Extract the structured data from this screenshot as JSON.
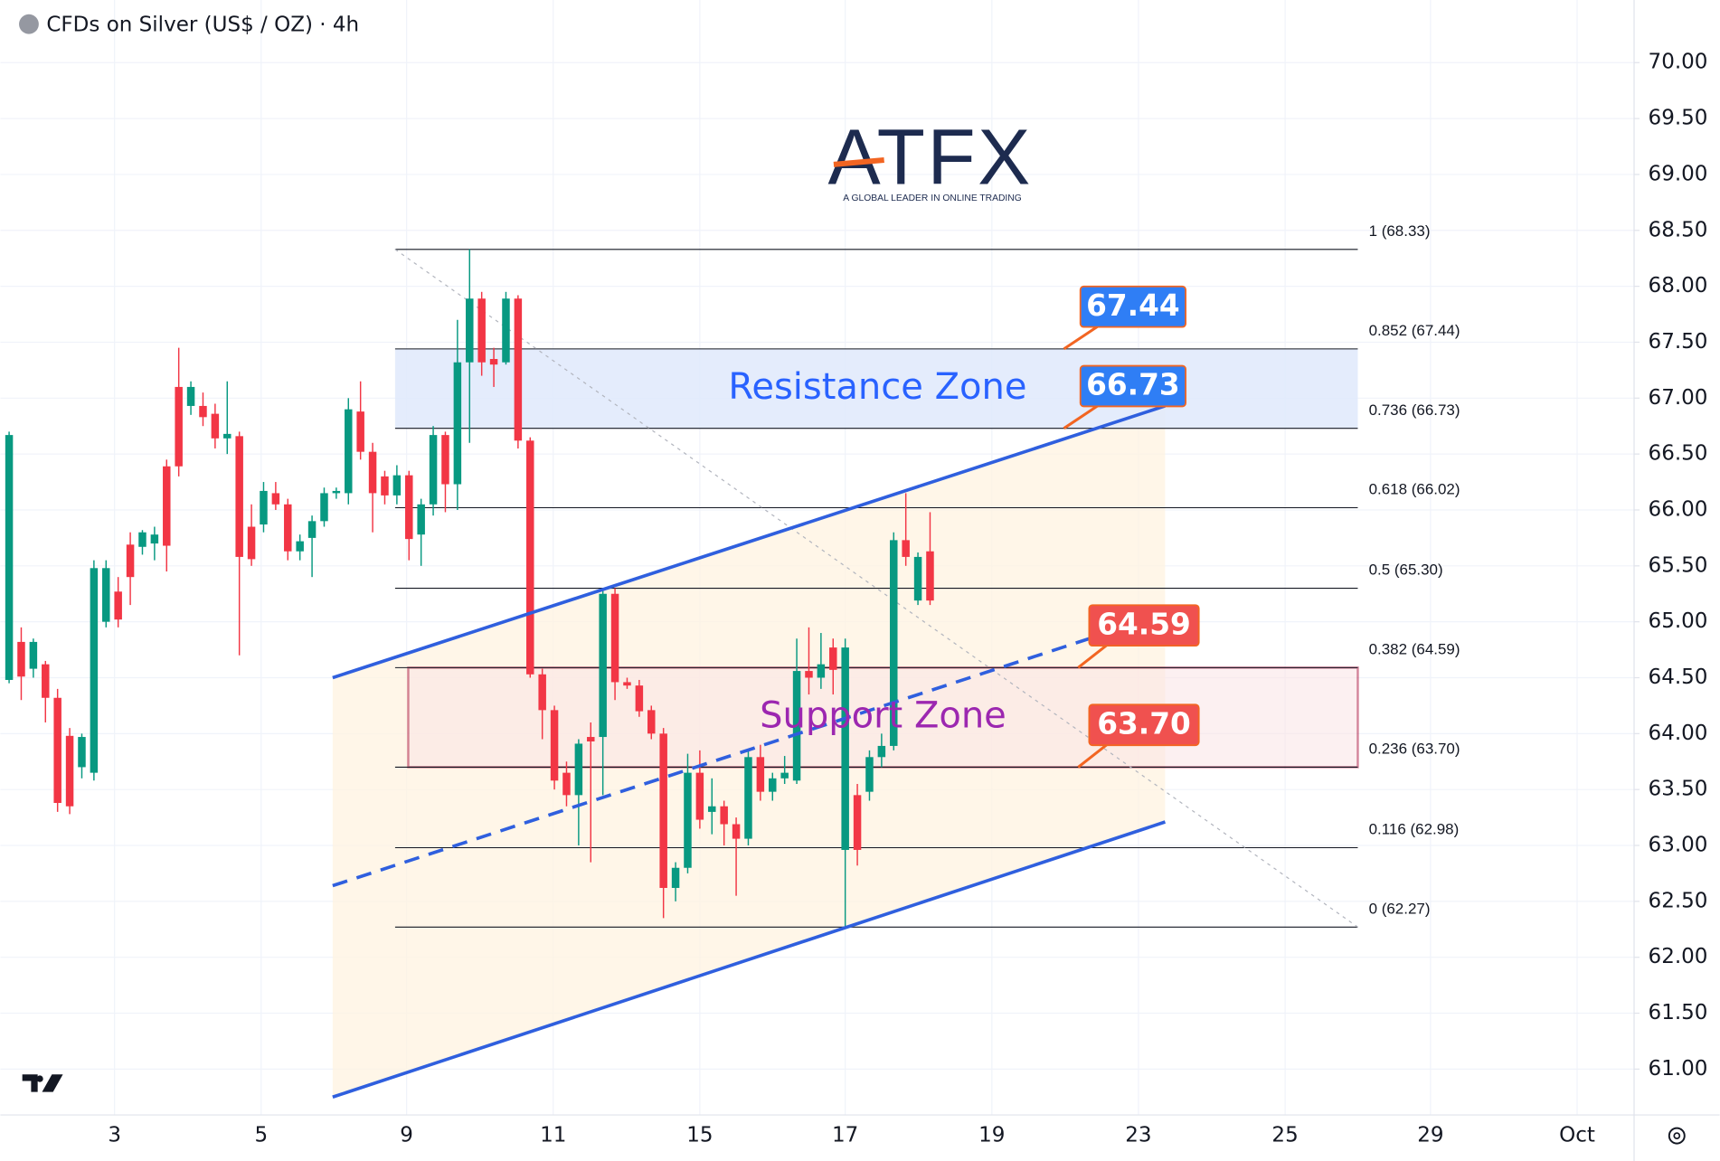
{
  "header": {
    "title": "CFDs on Silver (US$ / OZ) · 4h"
  },
  "logo": {
    "name": "ATFX",
    "tagline": "A GLOBAL LEADER IN ONLINE TRADING"
  },
  "chart_data": {
    "type": "candlestick",
    "x": [
      0,
      1,
      2,
      3,
      4,
      5,
      6,
      7,
      8,
      9,
      10,
      11,
      12,
      13,
      14,
      15,
      16,
      17,
      18,
      19,
      20,
      21,
      22,
      23,
      24,
      25,
      26,
      27,
      28,
      29,
      30,
      31,
      32,
      33,
      34,
      35,
      36,
      37,
      38,
      39,
      40,
      41,
      42,
      43,
      44,
      45,
      46,
      47,
      48,
      49,
      50,
      51,
      52,
      53,
      54,
      55,
      56,
      57,
      58,
      59,
      60,
      61,
      62,
      63,
      64,
      65,
      66,
      67,
      68,
      69,
      70,
      71,
      72,
      73,
      74,
      75,
      76
    ],
    "open": [
      64.48,
      64.82,
      64.58,
      64.62,
      64.32,
      63.98,
      63.7,
      63.65,
      65.0,
      65.27,
      65.69,
      65.67,
      65.7,
      66.39,
      67.1,
      66.93,
      66.93,
      66.86,
      66.64,
      66.66,
      65.85,
      65.87,
      66.15,
      66.05,
      65.63,
      65.75,
      65.9,
      66.15,
      66.15,
      66.88,
      66.52,
      66.3,
      66.13,
      66.31,
      65.78,
      66.05,
      66.67,
      66.23,
      67.32,
      67.89,
      67.35,
      67.32,
      67.89,
      66.62,
      64.53,
      64.21,
      63.65,
      63.45,
      63.97,
      63.97,
      65.25,
      64.46,
      64.43,
      64.21,
      64.0,
      62.62,
      62.8,
      63.65,
      63.3,
      63.35,
      63.19,
      63.06,
      63.79,
      63.48,
      63.6,
      63.58,
      64.56,
      64.5,
      64.77,
      62.96,
      63.45,
      63.48,
      63.79,
      63.89,
      65.73,
      65.19,
      65.63
    ],
    "high": [
      66.7,
      64.95,
      64.85,
      64.65,
      64.4,
      64.05,
      64.0,
      65.55,
      65.55,
      65.4,
      65.8,
      65.82,
      65.85,
      66.45,
      67.45,
      67.15,
      67.05,
      66.95,
      67.15,
      66.7,
      66.05,
      66.25,
      66.25,
      66.1,
      65.78,
      65.95,
      66.2,
      66.2,
      67.0,
      67.15,
      66.6,
      66.35,
      66.4,
      66.35,
      66.1,
      66.75,
      66.7,
      67.7,
      68.33,
      67.95,
      67.45,
      67.95,
      67.92,
      66.65,
      64.58,
      64.25,
      63.75,
      63.95,
      64.1,
      65.3,
      65.3,
      64.5,
      64.48,
      64.25,
      64.05,
      62.85,
      63.82,
      63.85,
      63.6,
      63.4,
      63.25,
      63.85,
      63.9,
      63.65,
      63.8,
      64.85,
      64.95,
      64.9,
      64.85,
      64.85,
      63.55,
      63.85,
      64.0,
      65.8,
      66.15,
      65.62,
      65.98
    ],
    "low": [
      64.45,
      64.3,
      64.5,
      64.1,
      63.3,
      63.28,
      63.6,
      63.58,
      64.95,
      64.95,
      65.15,
      65.6,
      65.55,
      65.45,
      66.3,
      66.85,
      66.75,
      66.55,
      66.5,
      64.7,
      65.5,
      65.8,
      66.0,
      65.55,
      65.55,
      65.4,
      65.85,
      66.1,
      66.05,
      66.45,
      65.8,
      66.05,
      66.05,
      65.55,
      65.5,
      65.95,
      65.98,
      66.0,
      66.6,
      67.2,
      67.1,
      67.3,
      66.55,
      64.5,
      63.95,
      63.5,
      63.35,
      63.0,
      62.85,
      63.45,
      64.3,
      64.4,
      64.15,
      63.95,
      62.35,
      62.5,
      62.75,
      63.15,
      63.1,
      63.0,
      62.55,
      63.0,
      63.4,
      63.4,
      63.55,
      63.55,
      64.35,
      64.4,
      64.35,
      62.27,
      62.82,
      63.4,
      63.7,
      63.85,
      65.5,
      65.15,
      65.15
    ],
    "close": [
      66.67,
      64.51,
      64.82,
      64.32,
      63.38,
      63.35,
      63.97,
      65.48,
      65.48,
      65.02,
      65.4,
      65.8,
      65.78,
      65.68,
      66.39,
      67.1,
      66.83,
      66.64,
      66.68,
      65.58,
      65.56,
      66.17,
      66.05,
      65.63,
      65.72,
      65.9,
      66.15,
      66.17,
      66.9,
      66.52,
      66.15,
      66.13,
      66.31,
      65.74,
      66.05,
      66.67,
      66.23,
      67.32,
      67.89,
      67.32,
      67.3,
      67.89,
      66.62,
      64.53,
      64.21,
      63.58,
      63.45,
      63.91,
      63.93,
      65.25,
      64.46,
      64.43,
      64.2,
      64.0,
      62.62,
      62.8,
      63.65,
      63.23,
      63.35,
      63.19,
      63.06,
      63.79,
      63.48,
      63.6,
      63.65,
      64.56,
      64.5,
      64.62,
      64.57,
      64.77,
      62.96,
      63.79,
      63.89,
      65.73,
      65.58,
      65.58,
      65.19
    ],
    "up_color": "#089981",
    "down_color": "#f23645",
    "xlim": [
      -0.72,
      134.1
    ],
    "xticks": [
      {
        "value": 8.7,
        "label": "3"
      },
      {
        "value": 20.8,
        "label": "5"
      },
      {
        "value": 32.8,
        "label": "9"
      },
      {
        "value": 44.9,
        "label": "11"
      },
      {
        "value": 57.0,
        "label": "15"
      },
      {
        "value": 69.0,
        "label": "17"
      },
      {
        "value": 81.1,
        "label": "19"
      },
      {
        "value": 93.2,
        "label": "23"
      },
      {
        "value": 105.3,
        "label": "25"
      },
      {
        "value": 117.3,
        "label": "29"
      },
      {
        "value": 129.4,
        "label": "Oct"
      }
    ],
    "ylim": [
      60.59,
      70.56
    ],
    "yticks": [
      {
        "value": 61,
        "label": "61.00"
      },
      {
        "value": 61.5,
        "label": "61.50"
      },
      {
        "value": 62,
        "label": "62.00"
      },
      {
        "value": 62.5,
        "label": "62.50"
      },
      {
        "value": 63,
        "label": "63.00"
      },
      {
        "value": 63.5,
        "label": "63.50"
      },
      {
        "value": 64,
        "label": "64.00"
      },
      {
        "value": 64.5,
        "label": "64.50"
      },
      {
        "value": 65,
        "label": "65.00"
      },
      {
        "value": 65.5,
        "label": "65.50"
      },
      {
        "value": 66,
        "label": "66.00"
      },
      {
        "value": 66.5,
        "label": "66.50"
      },
      {
        "value": 67,
        "label": "67.00"
      },
      {
        "value": 67.5,
        "label": "67.50"
      },
      {
        "value": 68,
        "label": "68.00"
      },
      {
        "value": 68.5,
        "label": "68.50"
      },
      {
        "value": 69,
        "label": "69.00"
      },
      {
        "value": 69.5,
        "label": "69.50"
      },
      {
        "value": 70,
        "label": "70.00"
      }
    ],
    "grid": true,
    "fib_levels": [
      {
        "value": 68.33,
        "label": "1 (68.33)"
      },
      {
        "value": 67.44,
        "label": "0.852 (67.44)"
      },
      {
        "value": 66.73,
        "label": "0.736 (66.73)"
      },
      {
        "value": 66.02,
        "label": "0.618 (66.02)"
      },
      {
        "value": 65.3,
        "label": "0.5 (65.30)"
      },
      {
        "value": 64.59,
        "label": "0.382 (64.59)"
      },
      {
        "value": 63.7,
        "label": "0.236 (63.70)"
      },
      {
        "value": 62.98,
        "label": "0.116 (62.98)"
      },
      {
        "value": 62.27,
        "label": "0 (62.27)"
      }
    ],
    "resistance_zone": {
      "label": "Resistance Zone",
      "range": [
        66.73,
        67.44
      ],
      "color": "#2962ff"
    },
    "support_zone": {
      "label": "Support Zone",
      "range": [
        63.7,
        64.59
      ],
      "color": "#9c27b0"
    },
    "channel": {
      "color": "#2f5fde",
      "upper": {
        "x": [
          26.7,
          95.4
        ],
        "y": [
          64.5,
          66.93
        ]
      },
      "middle": {
        "x": [
          26.7,
          93.4
        ],
        "y": [
          62.64,
          65.0
        ]
      },
      "lower": {
        "x": [
          26.7,
          95.4
        ],
        "y": [
          60.75,
          63.21
        ]
      }
    },
    "callouts": [
      {
        "color": "#2f7ef5",
        "value": 67.44
      },
      {
        "color": "#2f7ef5",
        "value": 66.73
      },
      {
        "color": "#f0514f",
        "value": 64.59
      },
      {
        "color": "#f0514f",
        "value": {
          "value": 63.7,
          "label": "63.70"
        }
      }
    ]
  }
}
